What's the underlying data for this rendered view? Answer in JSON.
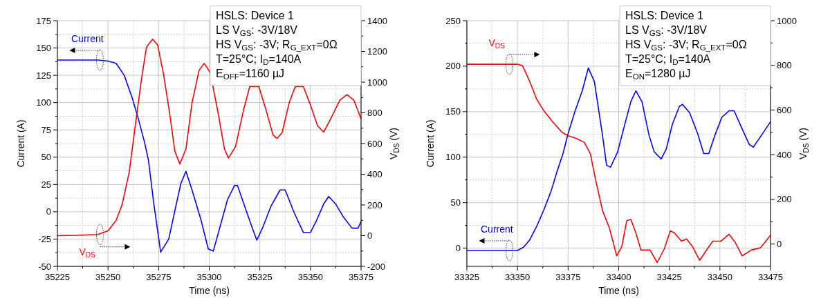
{
  "chart_data": [
    {
      "type": "line",
      "xlabel": "Time (ns)",
      "ylabel": "Current (A)",
      "y2label": "V$_{DS}$ (V)",
      "grid": true,
      "xlim": [
        35225,
        35375
      ],
      "xticks": [
        35225,
        35250,
        35275,
        35300,
        35325,
        35350,
        35375
      ],
      "ylim": [
        -50,
        175
      ],
      "yticks": [
        -50,
        -25,
        0,
        25,
        50,
        75,
        100,
        125,
        150,
        175
      ],
      "y2lim": [
        -200,
        1400
      ],
      "y2ticks": [
        -200,
        0,
        200,
        400,
        600,
        800,
        1000,
        1200,
        1400
      ],
      "annotations": [
        "HSLS: Device 1",
        "LS V$_{GS}$: -3V/18V",
        "HS V$_{GS}$: -3V; R$_{G_EXT}$=0Ω",
        "T=25°C; I$_{D}$=140A",
        "E$_{OFF}$=1160 µJ"
      ],
      "series": [
        {
          "name": "Current",
          "color": "#0000ff",
          "x": [
            35225,
            35235,
            35245,
            35250,
            35254,
            35258,
            35262,
            35265,
            35268,
            35270,
            35272.5,
            35276,
            35280,
            35283.5,
            35286,
            35288.5,
            35291.5,
            35296,
            35299.5,
            35302,
            35305,
            35309,
            35312.5,
            35314,
            35317.5,
            35321.5,
            35323.5,
            35326.5,
            35330.5,
            35335,
            35337.5,
            35342,
            35346.5,
            35350,
            35353,
            35356.5,
            35359,
            35362.5,
            35366,
            35370.5,
            35373.5,
            35375
          ],
          "values": [
            139,
            139,
            139,
            138,
            136,
            125,
            104,
            85,
            64,
            47,
            9,
            -37,
            -25,
            5,
            26,
            37,
            20,
            -8,
            -34,
            -36,
            -16,
            11,
            24,
            24,
            5,
            -16,
            -26,
            -14,
            5,
            20,
            20,
            -1,
            -19,
            -19,
            -8,
            7,
            14,
            7,
            -4,
            -15,
            -15,
            -9
          ]
        },
        {
          "name": "V$_{DS}$",
          "color": "#ff0000",
          "axis": "y2",
          "x": [
            35225,
            35235,
            35245,
            35250,
            35254,
            35257,
            35260.5,
            35263,
            35266.5,
            35269,
            35272,
            35274.5,
            35277.5,
            35280.5,
            35283,
            35285.5,
            35288.5,
            35291.5,
            35295,
            35297.5,
            35300.5,
            35304.5,
            35307.5,
            35309.5,
            35313,
            35317,
            35320,
            35324.5,
            35328,
            35331.5,
            35333.5,
            35336,
            35339.5,
            35342.5,
            35346.5,
            35350,
            35353.5,
            35356.5,
            35360,
            35364.5,
            35368,
            35371.5,
            35375
          ],
          "values": [
            0,
            2,
            8,
            31,
            99,
            204,
            415,
            670,
            1016,
            1227,
            1280,
            1242,
            1047,
            791,
            550,
            467,
            565,
            866,
            1077,
            1122,
            1062,
            791,
            565,
            505,
            580,
            821,
            971,
            971,
            821,
            656,
            633,
            671,
            866,
            971,
            971,
            851,
            716,
            674,
            761,
            881,
            919,
            881,
            761
          ]
        }
      ]
    },
    {
      "type": "line",
      "xlabel": "Time (ns)",
      "ylabel": "Current (A)",
      "y2label": "V$_{DS}$ (V)",
      "grid": true,
      "xlim": [
        33325,
        33475
      ],
      "xticks": [
        33325,
        33350,
        33375,
        33400,
        33425,
        33450,
        33475
      ],
      "ylim": [
        -20,
        250
      ],
      "yticks": [
        0,
        50,
        100,
        150,
        200,
        250
      ],
      "y2lim": [
        -100,
        1000
      ],
      "y2ticks": [
        0,
        200,
        400,
        600,
        800,
        1000
      ],
      "annotations": [
        "HSLS: Device 1",
        "LS V$_{GS}$: -3V/18V",
        "HS V$_{GS}$: -3V; R$_{G_EXT}$=0Ω",
        "T=25°C; I$_{D}$=140A",
        "E$_{ON}$=1280 µJ"
      ],
      "series": [
        {
          "name": "Current",
          "color": "#0000ff",
          "x": [
            33325,
            33340,
            33350,
            33353,
            33356,
            33359.5,
            33363,
            33366.5,
            33369.5,
            33372.5,
            33375,
            33378.5,
            33382,
            33385,
            33388,
            33392,
            33394,
            33396,
            33399.5,
            33403,
            33406,
            33408.5,
            33411.5,
            33415,
            33417.5,
            33421,
            33423.5,
            33426.5,
            33430,
            33431.5,
            33435,
            33439,
            33442,
            33444.5,
            33447.5,
            33451,
            33454.5,
            33457,
            33460,
            33464.5,
            33466.5,
            33470.5,
            33475
          ],
          "values": [
            -2.5,
            -2.5,
            -2.5,
            1,
            9,
            24,
            42,
            62,
            84,
            104,
            126,
            151,
            173,
            198,
            183,
            124,
            91,
            89,
            106,
            136,
            161,
            173,
            161,
            124,
            106,
            98,
            109,
            136,
            156,
            158,
            149,
            126,
            104,
            104,
            124,
            144,
            151,
            151,
            136,
            114,
            111,
            124,
            139
          ]
        },
        {
          "name": "V$_{DS}$",
          "color": "#ff0000",
          "axis": "y2",
          "x": [
            33325,
            33340,
            33350,
            33352.5,
            33356,
            33359.5,
            33363,
            33367.5,
            33372,
            33375,
            33379,
            33383,
            33386,
            33388.5,
            33392,
            33395.5,
            33399,
            33401.5,
            33404,
            33406,
            33408.5,
            33411,
            33415.5,
            33419,
            33422.5,
            33425.5,
            33427.5,
            33431,
            33433.5,
            33436.5,
            33440,
            33443,
            33446.5,
            33450.5,
            33454.5,
            33457.5,
            33461,
            33465.5,
            33470,
            33475
          ],
          "values": [
            805,
            805,
            805,
            798,
            729,
            648,
            597,
            546,
            500,
            485,
            473,
            455,
            404,
            292,
            150,
            69,
            -53,
            -12,
            105,
            110,
            49,
            -27,
            -27,
            -83,
            -22,
            59,
            50,
            13,
            23,
            -12,
            -73,
            -32,
            13,
            13,
            44,
            8,
            -53,
            -27,
            -17,
            39
          ]
        }
      ]
    }
  ]
}
